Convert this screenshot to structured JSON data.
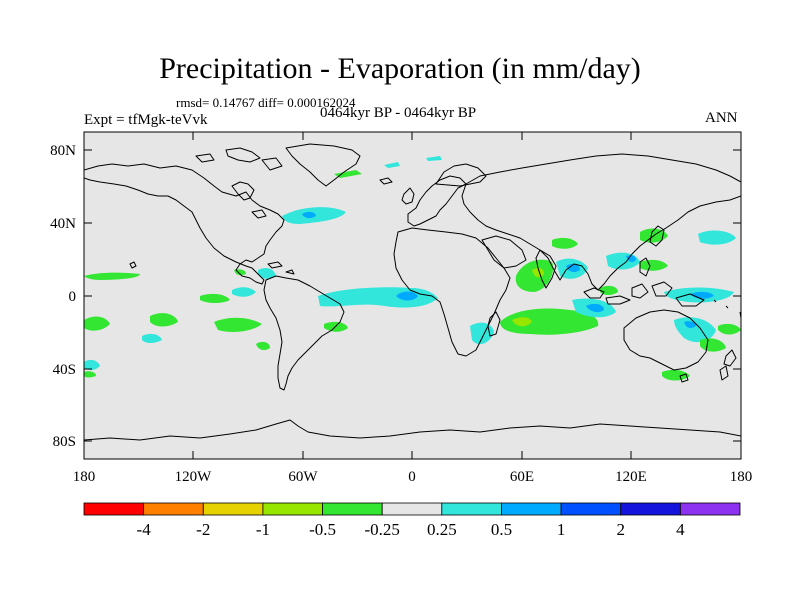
{
  "title": "Precipitation - Evaporation (in mm/day)",
  "stats": "rmsd= 0.14767 diff= 0.000162024",
  "experiment": "Expt = tfMgk-teVvk",
  "period": "0464kyr BP - 0464kyr BP",
  "season": "ANN",
  "lat_ticks": [
    "80N",
    "40N",
    "0",
    "40S",
    "80S"
  ],
  "lon_ticks": [
    "180",
    "120W",
    "60W",
    "0",
    "60E",
    "120E",
    "180"
  ],
  "colorbar": {
    "labels": [
      "-4",
      "-2",
      "-1",
      "-0.5",
      "-0.25",
      "0.25",
      "0.5",
      "1",
      "2",
      "4"
    ],
    "colors": [
      "#ff0000",
      "#ff8000",
      "#e6d200",
      "#96e600",
      "#32e632",
      "#e6e6e6",
      "#32e6dc",
      "#00aaff",
      "#0050ff",
      "#1414dc",
      "#8c32f0"
    ]
  },
  "colors": {
    "ocean_background": "#e6e6e6",
    "coastline": "#000000",
    "positive_small": "#32e6dc",
    "positive_medium": "#00aaff",
    "negative_small": "#32e632",
    "negative_medium": "#96e600"
  }
}
